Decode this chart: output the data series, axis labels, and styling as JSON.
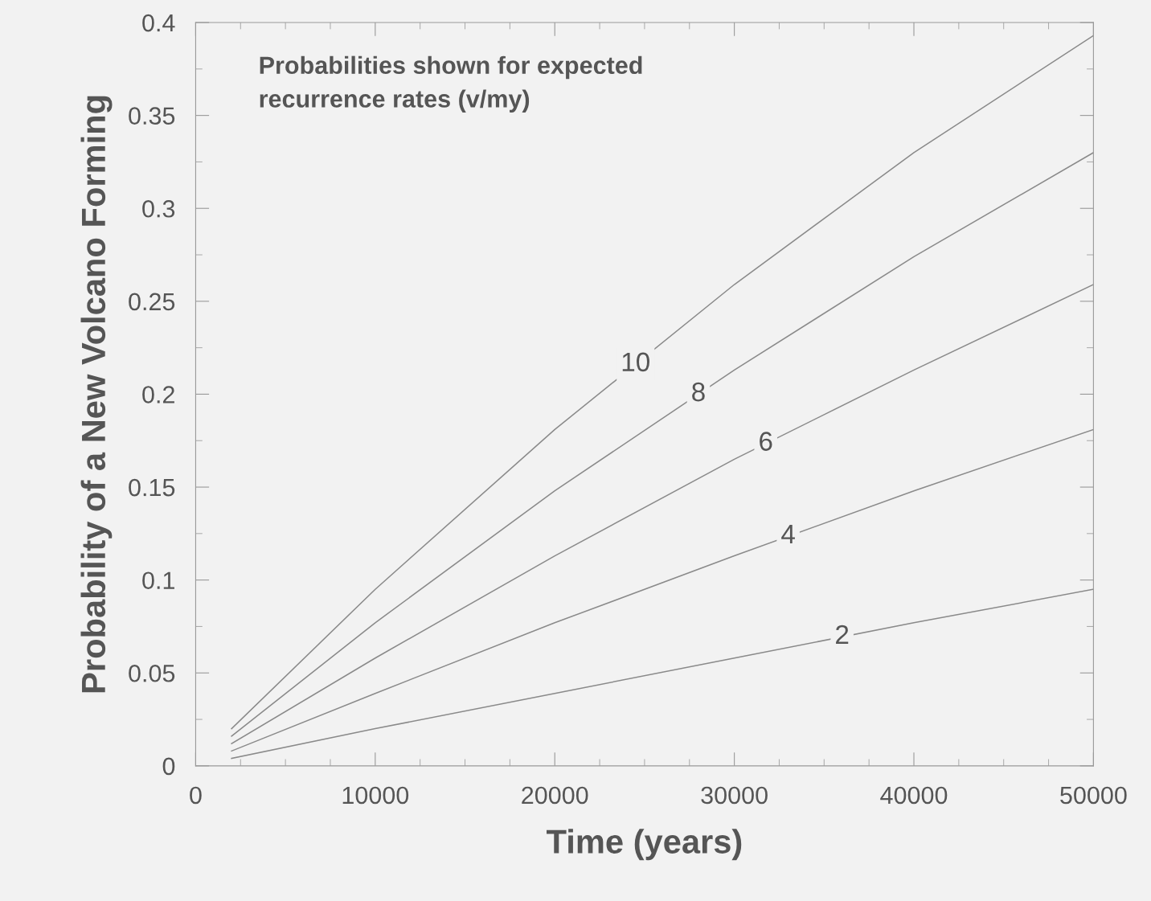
{
  "chart_data": {
    "type": "line",
    "xlabel": "Time (years)",
    "ylabel": "Probability of a New Volcano Forming",
    "annotations": [
      "Probabilities shown for expected\nrecurrence rates (v/my)"
    ],
    "x": [
      2000,
      10000,
      20000,
      30000,
      40000,
      50000
    ],
    "series": [
      {
        "name": "10",
        "color": "#8a8a8a",
        "values": [
          0.02,
          0.095,
          0.181,
          0.259,
          0.33,
          0.393
        ]
      },
      {
        "name": "8",
        "color": "#8a8a8a",
        "values": [
          0.016,
          0.077,
          0.148,
          0.213,
          0.274,
          0.33
        ]
      },
      {
        "name": "6",
        "color": "#8a8a8a",
        "values": [
          0.012,
          0.058,
          0.113,
          0.165,
          0.213,
          0.259
        ]
      },
      {
        "name": "4",
        "color": "#8a8a8a",
        "values": [
          0.008,
          0.039,
          0.077,
          0.113,
          0.148,
          0.181
        ]
      },
      {
        "name": "2",
        "color": "#8a8a8a",
        "values": [
          0.004,
          0.02,
          0.039,
          0.058,
          0.077,
          0.095
        ]
      }
    ],
    "xlim": [
      0,
      50000
    ],
    "xticks": [
      0,
      10000,
      20000,
      30000,
      40000,
      50000
    ],
    "ylim": [
      0,
      0.4
    ],
    "yticks": [
      0,
      0.05,
      0.1,
      0.15,
      0.2,
      0.25,
      0.3,
      0.35,
      0.4
    ],
    "grid": false,
    "legend": false,
    "marker": "none",
    "line_style": "solid"
  }
}
